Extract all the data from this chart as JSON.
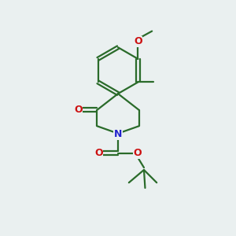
{
  "background_color": "#eaf0f0",
  "bond_color": "#2a6b2a",
  "nitrogen_color": "#2222cc",
  "oxygen_color": "#cc1111",
  "line_width": 1.6,
  "figsize": [
    3.0,
    3.0
  ],
  "dpi": 100,
  "xlim": [
    0,
    10
  ],
  "ylim": [
    0,
    10
  ]
}
